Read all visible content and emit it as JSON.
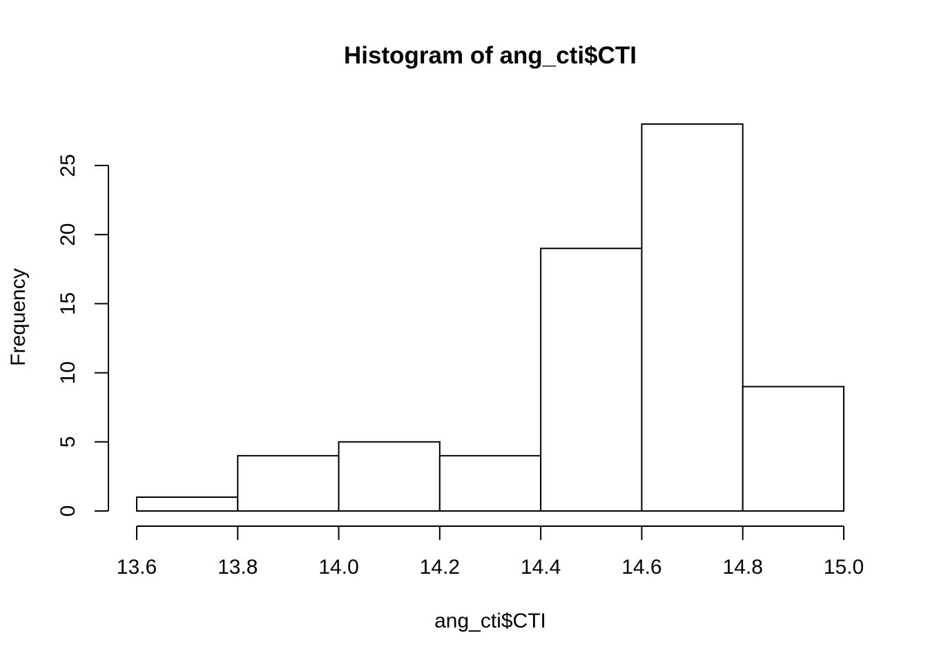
{
  "chart_data": {
    "type": "bar",
    "title": "Histogram of ang_cti$CTI",
    "xlabel": "ang_cti$CTI",
    "ylabel": "Frequency",
    "bin_edges": [
      13.6,
      13.8,
      14.0,
      14.2,
      14.4,
      14.6,
      14.8,
      15.0
    ],
    "categories": [
      "13.6-13.8",
      "13.8-14.0",
      "14.0-14.2",
      "14.2-14.4",
      "14.4-14.6",
      "14.6-14.8",
      "14.8-15.0"
    ],
    "values": [
      1,
      4,
      5,
      4,
      19,
      28,
      9
    ],
    "xlim": [
      13.6,
      15.0
    ],
    "ylim": [
      0,
      28
    ],
    "x_ticks": [
      "13.6",
      "13.8",
      "14.0",
      "14.2",
      "14.4",
      "14.6",
      "14.8",
      "15.0"
    ],
    "y_ticks": [
      "0",
      "5",
      "10",
      "15",
      "20",
      "25"
    ],
    "grid": false,
    "colors": {
      "bar_fill": "#ffffff",
      "bar_stroke": "#000000"
    }
  }
}
